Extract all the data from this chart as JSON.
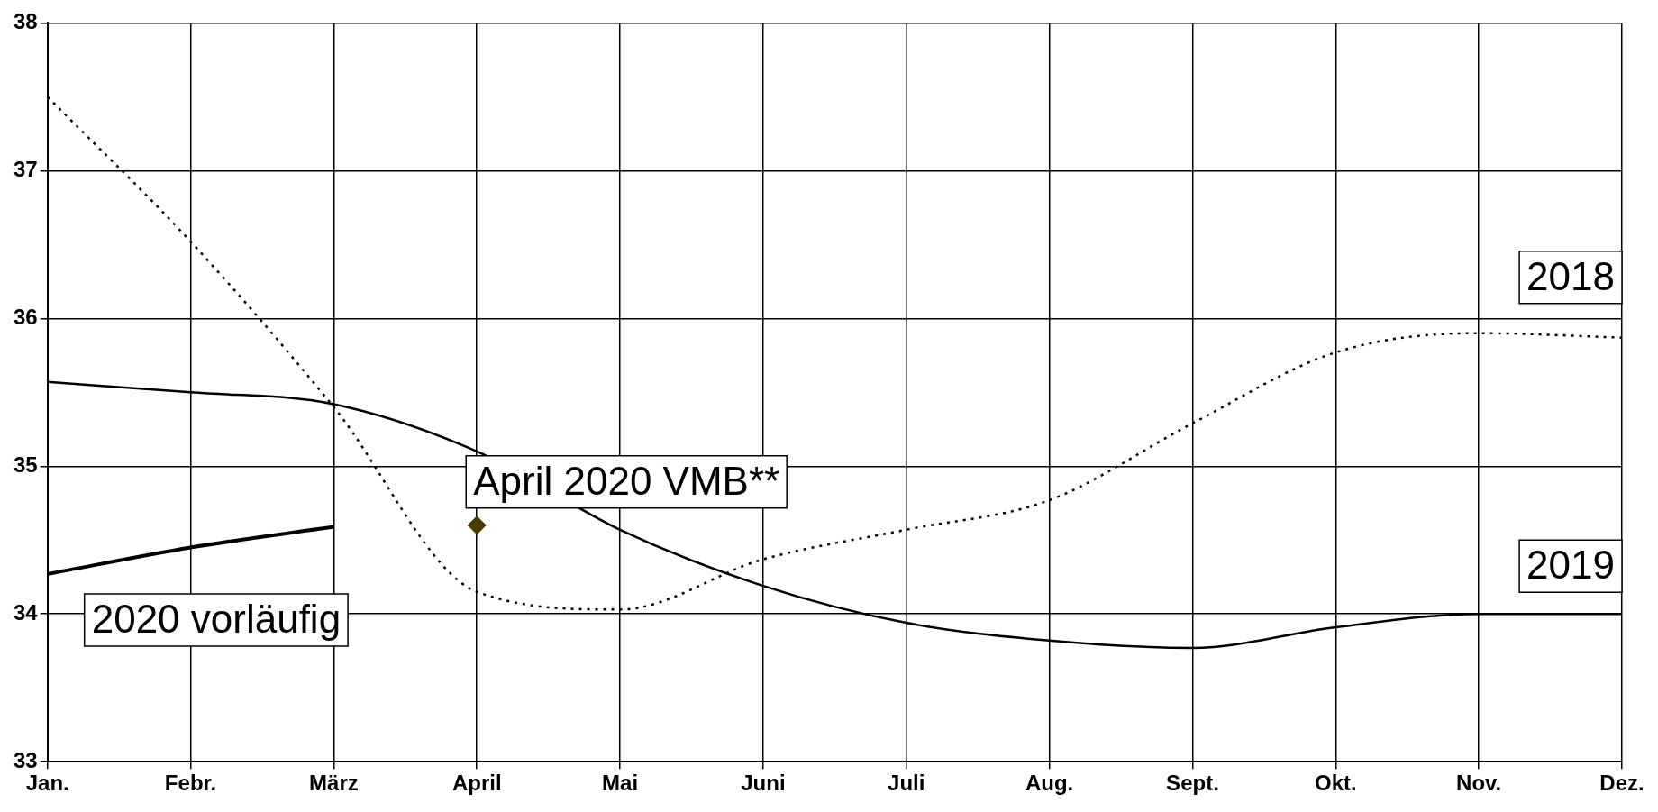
{
  "chart_data": {
    "type": "line",
    "categories": [
      "Jan.",
      "Febr.",
      "März",
      "April",
      "Mai",
      "Juni",
      "Juli",
      "Aug.",
      "Sept.",
      "Okt.",
      "Nov.",
      "Dez."
    ],
    "series": [
      {
        "name": "2018",
        "color": "#000000",
        "line_style": "dotted",
        "values": [
          37.5,
          36.52,
          35.4,
          34.15,
          34.03,
          34.37,
          34.57,
          34.77,
          35.29,
          35.77,
          35.9,
          35.87
        ]
      },
      {
        "name": "2019",
        "color": "#000000",
        "line_style": "solid",
        "values": [
          35.57,
          35.5,
          35.42,
          35.1,
          34.57,
          34.19,
          33.94,
          33.82,
          33.77,
          33.91,
          34.0,
          34.0
        ]
      },
      {
        "name": "2020 vorläufig",
        "color": "#000000",
        "line_style": "solid",
        "values": [
          34.27,
          34.45,
          34.59,
          null,
          null,
          null,
          null,
          null,
          null,
          null,
          null,
          null
        ]
      },
      {
        "name": "April 2020 VMB**",
        "type": "scatter",
        "marker": "diamond",
        "color": "#4a3c00",
        "values": [
          null,
          null,
          null,
          34.6,
          null,
          null,
          null,
          null,
          null,
          null,
          null,
          null
        ]
      }
    ],
    "ylim": [
      33,
      38
    ],
    "yticks": [
      33,
      34,
      35,
      36,
      37,
      38
    ],
    "grid": true,
    "legend": false,
    "marker": "none"
  }
}
